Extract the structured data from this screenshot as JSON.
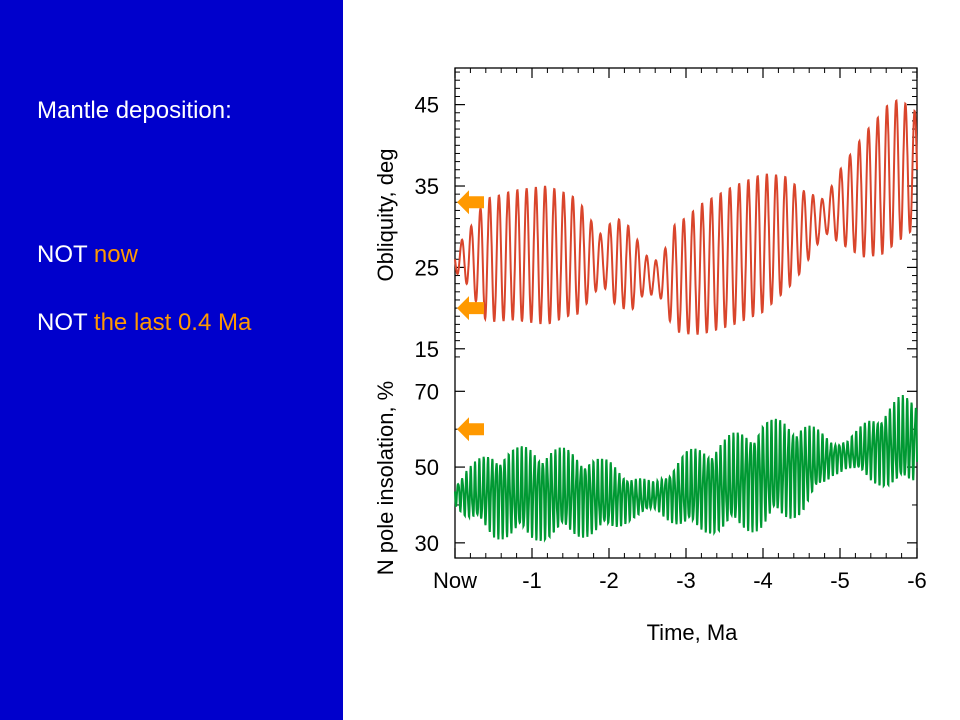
{
  "slide": {
    "panel_color": "#0000cc",
    "heading": "Mantle deposition:",
    "lines": [
      {
        "prefix": "NOT",
        "highlight": "now"
      },
      {
        "prefix": "NOT",
        "highlight": "the last 0.4 Ma"
      }
    ],
    "highlight_color": "#ff9900"
  },
  "chart_data": {
    "type": "line",
    "xlabel": "Time, Ma",
    "x_range": [
      0,
      -6
    ],
    "x_ticks": [
      0,
      -1,
      -2,
      -3,
      -4,
      -5,
      -6
    ],
    "x_tick_labels": [
      "Now",
      "-1",
      "-2",
      "-3",
      "-4",
      "-5",
      "-6"
    ],
    "grid": false,
    "legend": "none",
    "panels": [
      {
        "name": "obliquity",
        "ylabel": "Obliquity, deg",
        "y_ticks": [
          15,
          25,
          35,
          45
        ],
        "y_range": [
          13.5,
          49.5
        ],
        "color": "#d9452c",
        "baseline_points": [
          [
            0,
            26
          ],
          [
            -0.25,
            26
          ],
          [
            -0.5,
            26
          ],
          [
            -0.75,
            26.5
          ],
          [
            -1,
            26.5
          ],
          [
            -1.25,
            26.5
          ],
          [
            -1.5,
            26.5
          ],
          [
            -1.75,
            26
          ],
          [
            -2,
            26
          ],
          [
            -2.25,
            25
          ],
          [
            -2.5,
            24
          ],
          [
            -2.75,
            23.5
          ],
          [
            -3,
            24
          ],
          [
            -3.25,
            25
          ],
          [
            -3.5,
            26
          ],
          [
            -3.75,
            27
          ],
          [
            -4,
            28
          ],
          [
            -4.25,
            29
          ],
          [
            -4.5,
            29.5
          ],
          [
            -4.75,
            31
          ],
          [
            -5,
            32.5
          ],
          [
            -5.25,
            33.5
          ],
          [
            -5.5,
            35
          ],
          [
            -5.75,
            37
          ],
          [
            -6,
            37
          ]
        ],
        "amplitude_points": [
          [
            0,
            1.5
          ],
          [
            -0.15,
            3
          ],
          [
            -0.4,
            7.5
          ],
          [
            -0.8,
            8
          ],
          [
            -1.2,
            8.5
          ],
          [
            -1.6,
            7
          ],
          [
            -1.9,
            3
          ],
          [
            -2.1,
            5.5
          ],
          [
            -2.3,
            5
          ],
          [
            -2.45,
            2.5
          ],
          [
            -2.65,
            2
          ],
          [
            -2.85,
            6.5
          ],
          [
            -3.2,
            8
          ],
          [
            -3.6,
            8.5
          ],
          [
            -4,
            8.5
          ],
          [
            -4.3,
            7
          ],
          [
            -4.55,
            4.5
          ],
          [
            -4.8,
            2
          ],
          [
            -5.0,
            4.5
          ],
          [
            -5.3,
            7.5
          ],
          [
            -5.6,
            9
          ],
          [
            -5.8,
            8.5
          ],
          [
            -6,
            7
          ]
        ],
        "period_ma": 0.12,
        "arrow_markers": [
          33,
          20
        ]
      },
      {
        "name": "insolation",
        "ylabel": "N pole insolation, %",
        "y_ticks": [
          30,
          50,
          70
        ],
        "y_range": [
          26,
          78
        ],
        "color": "#009933",
        "baseline_points": [
          [
            0,
            43
          ],
          [
            -0.5,
            43
          ],
          [
            -1,
            43
          ],
          [
            -1.5,
            43
          ],
          [
            -2,
            42
          ],
          [
            -2.5,
            42
          ],
          [
            -3,
            43.5
          ],
          [
            -3.5,
            45
          ],
          [
            -4,
            48
          ],
          [
            -4.5,
            50
          ],
          [
            -5,
            53
          ],
          [
            -5.5,
            55
          ],
          [
            -6,
            57
          ]
        ],
        "amplitude_points": [
          [
            0,
            3
          ],
          [
            -0.15,
            7
          ],
          [
            -0.5,
            12
          ],
          [
            -1,
            13
          ],
          [
            -1.5,
            12
          ],
          [
            -2,
            10
          ],
          [
            -2.3,
            6
          ],
          [
            -2.6,
            4
          ],
          [
            -3,
            11
          ],
          [
            -3.5,
            13
          ],
          [
            -4,
            15
          ],
          [
            -4.5,
            13
          ],
          [
            -4.9,
            5
          ],
          [
            -5.1,
            4
          ],
          [
            -5.4,
            9
          ],
          [
            -5.8,
            13
          ],
          [
            -6,
            11
          ]
        ],
        "period_ma": 0.055,
        "arrow_markers": [
          60
        ]
      }
    ]
  }
}
